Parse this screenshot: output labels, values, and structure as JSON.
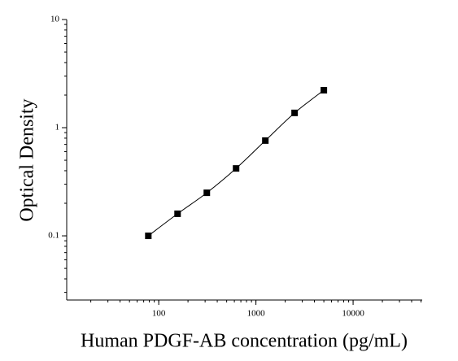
{
  "chart_data": {
    "type": "scatter",
    "x_label": "Human PDGF-AB concentration (pg/mL)",
    "y_label": "Optical Density",
    "x": [
      78.125,
      156.25,
      312.5,
      625,
      1250,
      2500,
      5000
    ],
    "values": [
      0.1,
      0.16,
      0.25,
      0.42,
      0.76,
      1.37,
      2.22
    ],
    "color": "#000000",
    "fit_line": true,
    "xlim": [
      11.3,
      51400
    ],
    "ylim": [
      0.0255,
      10
    ],
    "xscale": "log",
    "yscale": "log",
    "minor_ticks": true,
    "xticks": [
      100,
      1000,
      10000
    ],
    "yticks": [
      0.1,
      1,
      10
    ]
  }
}
